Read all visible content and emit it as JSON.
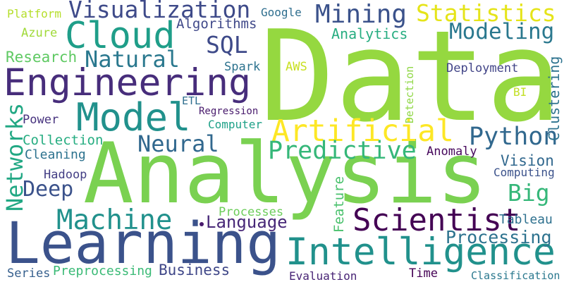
{
  "words": [
    {
      "text": "Data",
      "color": "#95d840"
    },
    {
      "text": "Analysis",
      "color": "#7ad151"
    },
    {
      "text": "Learning",
      "color": "#3b528b"
    },
    {
      "text": "Intelligence",
      "color": "#21918c"
    },
    {
      "text": "Engineering",
      "color": "#472d7b"
    },
    {
      "text": "Cloud",
      "color": "#1f9e89"
    },
    {
      "text": "Model",
      "color": "#21918c"
    },
    {
      "text": "Artificial",
      "color": "#fde725"
    },
    {
      "text": "Statistics",
      "color": "#e5e419"
    },
    {
      "text": "Visualization",
      "color": "#3e4a89"
    },
    {
      "text": "Mining",
      "color": "#3b528b"
    },
    {
      "text": "Modeling",
      "color": "#2a788e"
    },
    {
      "text": "Scientist",
      "color": "#440154"
    },
    {
      "text": "Predictive",
      "color": "#35b779"
    },
    {
      "text": "Python",
      "color": "#31688e"
    },
    {
      "text": "Big",
      "color": "#35b779"
    },
    {
      "text": "Machine",
      "color": "#21918c"
    },
    {
      "text": "Natural",
      "color": "#2a788e"
    },
    {
      "text": "Neural",
      "color": "#31688e"
    },
    {
      "text": "Deep",
      "color": "#3b528b"
    },
    {
      "text": "SQL",
      "color": "#3e4a89"
    },
    {
      "text": "Networks",
      "color": "#22a884"
    },
    {
      "text": "Language",
      "color": "#482878"
    },
    {
      "text": "Processing",
      "color": "#2c728e"
    },
    {
      "text": "Computer",
      "color": "#1fa188"
    },
    {
      "text": "Collection",
      "color": "#26ad81"
    },
    {
      "text": "Cleaning",
      "color": "#2c728e"
    },
    {
      "text": "Power",
      "color": "#46327e"
    },
    {
      "text": "Research",
      "color": "#5ec962"
    },
    {
      "text": "Azure",
      "color": "#a0da39"
    },
    {
      "text": "Platform",
      "color": "#b5de2b"
    },
    {
      "text": "Google",
      "color": "#2e6e8e"
    },
    {
      "text": "Algorithms",
      "color": "#3f4889"
    },
    {
      "text": "Analytics",
      "color": "#27ad81"
    },
    {
      "text": "Spark",
      "color": "#2c728e"
    },
    {
      "text": "AWS",
      "color": "#c8e020"
    },
    {
      "text": "Deployment",
      "color": "#414487"
    },
    {
      "text": "ETL",
      "color": "#2e6e8e"
    },
    {
      "text": "Regression",
      "color": "#481a6c"
    },
    {
      "text": "Detection",
      "color": "#8fd744"
    },
    {
      "text": "BI",
      "color": "#c2df23"
    },
    {
      "text": "Clustering",
      "color": "#2c728e"
    },
    {
      "text": "Anomaly",
      "color": "#46085c"
    },
    {
      "text": "Vision",
      "color": "#31688e"
    },
    {
      "text": "Computing",
      "color": "#3b528b"
    },
    {
      "text": "Hadoop",
      "color": "#433e85"
    },
    {
      "text": "Feature",
      "color": "#4ac16d"
    },
    {
      "text": "Processes",
      "color": "#6ccd5a"
    },
    {
      "text": "Tableau",
      "color": "#2d708e"
    },
    {
      "text": "Business",
      "color": "#3f4788"
    },
    {
      "text": "Preprocessing",
      "color": "#3aba76"
    },
    {
      "text": "Series",
      "color": "#355f8d"
    },
    {
      "text": "Evaluation",
      "color": "#482475"
    },
    {
      "text": "Time",
      "color": "#440154"
    },
    {
      "text": "Classification",
      "color": "#2a788e"
    }
  ]
}
